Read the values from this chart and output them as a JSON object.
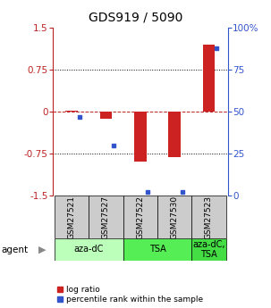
{
  "title": "GDS919 / 5090",
  "samples": [
    "GSM27521",
    "GSM27527",
    "GSM27522",
    "GSM27530",
    "GSM27523"
  ],
  "log_ratios": [
    0.02,
    -0.13,
    -0.9,
    -0.82,
    1.2
  ],
  "percentile_ranks": [
    47,
    30,
    2,
    2,
    88
  ],
  "ylim_left": [
    -1.5,
    1.5
  ],
  "yticks_left": [
    -1.5,
    -0.75,
    0,
    0.75,
    1.5
  ],
  "ytick_labels_left": [
    "-1.5",
    "-0.75",
    "0",
    "0.75",
    "1.5"
  ],
  "ylim_right": [
    0,
    100
  ],
  "yticks_right": [
    0,
    25,
    50,
    75,
    100
  ],
  "ytick_labels_right": [
    "0",
    "25",
    "50",
    "75",
    "100%"
  ],
  "hlines": [
    -0.75,
    0,
    0.75
  ],
  "bar_width": 0.35,
  "red_color": "#bb2222",
  "blue_color": "#3355cc",
  "bar_red": "#cc2222",
  "bar_blue": "#3355cc",
  "agent_groups": [
    {
      "label": "aza-dC",
      "span": [
        0,
        2
      ],
      "color": "#bbffbb"
    },
    {
      "label": "TSA",
      "span": [
        2,
        4
      ],
      "color": "#55ee55"
    },
    {
      "label": "aza-dC,\nTSA",
      "span": [
        4,
        5
      ],
      "color": "#44dd44"
    }
  ],
  "agent_label": "agent",
  "legend_red_label": "log ratio",
  "legend_blue_label": "percentile rank within the sample",
  "sample_box_color": "#cccccc",
  "title_fontsize": 10,
  "tick_fontsize": 7.5,
  "sample_fontsize": 6.5,
  "agent_fontsize": 7.5,
  "legend_fontsize": 6.5
}
